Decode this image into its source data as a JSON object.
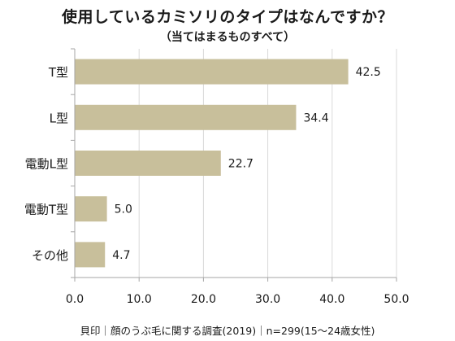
{
  "chart_data": {
    "type": "bar",
    "orientation": "horizontal",
    "title": "使用しているカミソリのタイプはなんですか？",
    "subtitle": "（当てはまるものすべて）",
    "categories": [
      "T型",
      "L型",
      "電動L型",
      "電動T型",
      "その他"
    ],
    "values": [
      42.5,
      34.4,
      22.7,
      5.0,
      4.7
    ],
    "data_labels": [
      "42.5",
      "34.4",
      "22.7",
      "5.0",
      "4.7"
    ],
    "xlim": [
      0,
      50
    ],
    "xticks": [
      0,
      10,
      20,
      30,
      40,
      50
    ],
    "xtick_labels": [
      "0.0",
      "10.0",
      "20.0",
      "30.0",
      "40.0",
      "50.0"
    ],
    "grid": "vertical",
    "bar_color": "#c8bf9b",
    "grid_color": "#d9d9d9",
    "axis_color": "#a6a6a6",
    "note": "貝印｜顔のうぶ毛に関する調査(2019)｜n=299(15〜24歳女性)"
  }
}
